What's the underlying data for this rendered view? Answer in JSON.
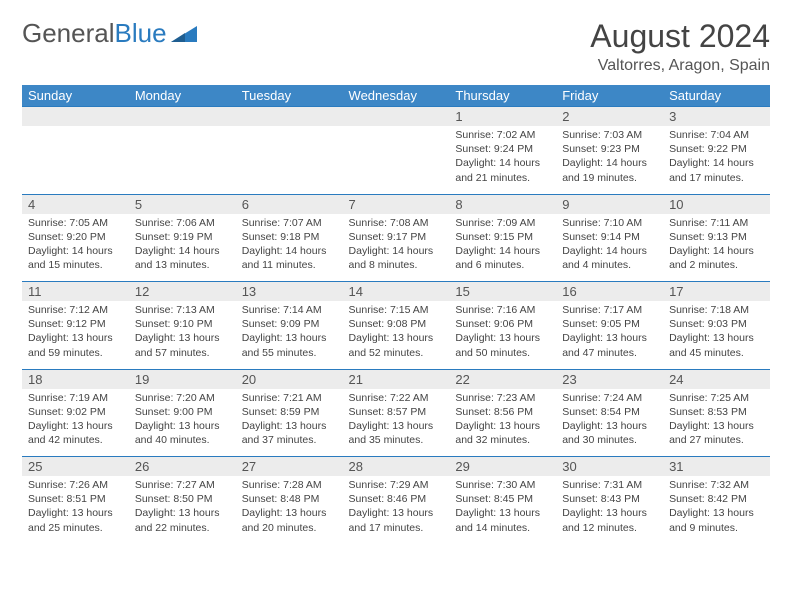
{
  "logo": {
    "text1": "General",
    "text2": "Blue"
  },
  "title": "August 2024",
  "subtitle": "Valtorres, Aragon, Spain",
  "colors": {
    "header_bg": "#3d87c6",
    "daynum_bg": "#ececec",
    "daynum_border": "#2a7bbf",
    "text": "#444444",
    "logo_gray": "#555555",
    "logo_blue": "#2a7bbf"
  },
  "weekdays": [
    "Sunday",
    "Monday",
    "Tuesday",
    "Wednesday",
    "Thursday",
    "Friday",
    "Saturday"
  ],
  "weeks": [
    [
      null,
      null,
      null,
      null,
      {
        "n": "1",
        "sunrise": "7:02 AM",
        "sunset": "9:24 PM",
        "daylight": "14 hours and 21 minutes."
      },
      {
        "n": "2",
        "sunrise": "7:03 AM",
        "sunset": "9:23 PM",
        "daylight": "14 hours and 19 minutes."
      },
      {
        "n": "3",
        "sunrise": "7:04 AM",
        "sunset": "9:22 PM",
        "daylight": "14 hours and 17 minutes."
      }
    ],
    [
      {
        "n": "4",
        "sunrise": "7:05 AM",
        "sunset": "9:20 PM",
        "daylight": "14 hours and 15 minutes."
      },
      {
        "n": "5",
        "sunrise": "7:06 AM",
        "sunset": "9:19 PM",
        "daylight": "14 hours and 13 minutes."
      },
      {
        "n": "6",
        "sunrise": "7:07 AM",
        "sunset": "9:18 PM",
        "daylight": "14 hours and 11 minutes."
      },
      {
        "n": "7",
        "sunrise": "7:08 AM",
        "sunset": "9:17 PM",
        "daylight": "14 hours and 8 minutes."
      },
      {
        "n": "8",
        "sunrise": "7:09 AM",
        "sunset": "9:15 PM",
        "daylight": "14 hours and 6 minutes."
      },
      {
        "n": "9",
        "sunrise": "7:10 AM",
        "sunset": "9:14 PM",
        "daylight": "14 hours and 4 minutes."
      },
      {
        "n": "10",
        "sunrise": "7:11 AM",
        "sunset": "9:13 PM",
        "daylight": "14 hours and 2 minutes."
      }
    ],
    [
      {
        "n": "11",
        "sunrise": "7:12 AM",
        "sunset": "9:12 PM",
        "daylight": "13 hours and 59 minutes."
      },
      {
        "n": "12",
        "sunrise": "7:13 AM",
        "sunset": "9:10 PM",
        "daylight": "13 hours and 57 minutes."
      },
      {
        "n": "13",
        "sunrise": "7:14 AM",
        "sunset": "9:09 PM",
        "daylight": "13 hours and 55 minutes."
      },
      {
        "n": "14",
        "sunrise": "7:15 AM",
        "sunset": "9:08 PM",
        "daylight": "13 hours and 52 minutes."
      },
      {
        "n": "15",
        "sunrise": "7:16 AM",
        "sunset": "9:06 PM",
        "daylight": "13 hours and 50 minutes."
      },
      {
        "n": "16",
        "sunrise": "7:17 AM",
        "sunset": "9:05 PM",
        "daylight": "13 hours and 47 minutes."
      },
      {
        "n": "17",
        "sunrise": "7:18 AM",
        "sunset": "9:03 PM",
        "daylight": "13 hours and 45 minutes."
      }
    ],
    [
      {
        "n": "18",
        "sunrise": "7:19 AM",
        "sunset": "9:02 PM",
        "daylight": "13 hours and 42 minutes."
      },
      {
        "n": "19",
        "sunrise": "7:20 AM",
        "sunset": "9:00 PM",
        "daylight": "13 hours and 40 minutes."
      },
      {
        "n": "20",
        "sunrise": "7:21 AM",
        "sunset": "8:59 PM",
        "daylight": "13 hours and 37 minutes."
      },
      {
        "n": "21",
        "sunrise": "7:22 AM",
        "sunset": "8:57 PM",
        "daylight": "13 hours and 35 minutes."
      },
      {
        "n": "22",
        "sunrise": "7:23 AM",
        "sunset": "8:56 PM",
        "daylight": "13 hours and 32 minutes."
      },
      {
        "n": "23",
        "sunrise": "7:24 AM",
        "sunset": "8:54 PM",
        "daylight": "13 hours and 30 minutes."
      },
      {
        "n": "24",
        "sunrise": "7:25 AM",
        "sunset": "8:53 PM",
        "daylight": "13 hours and 27 minutes."
      }
    ],
    [
      {
        "n": "25",
        "sunrise": "7:26 AM",
        "sunset": "8:51 PM",
        "daylight": "13 hours and 25 minutes."
      },
      {
        "n": "26",
        "sunrise": "7:27 AM",
        "sunset": "8:50 PM",
        "daylight": "13 hours and 22 minutes."
      },
      {
        "n": "27",
        "sunrise": "7:28 AM",
        "sunset": "8:48 PM",
        "daylight": "13 hours and 20 minutes."
      },
      {
        "n": "28",
        "sunrise": "7:29 AM",
        "sunset": "8:46 PM",
        "daylight": "13 hours and 17 minutes."
      },
      {
        "n": "29",
        "sunrise": "7:30 AM",
        "sunset": "8:45 PM",
        "daylight": "13 hours and 14 minutes."
      },
      {
        "n": "30",
        "sunrise": "7:31 AM",
        "sunset": "8:43 PM",
        "daylight": "13 hours and 12 minutes."
      },
      {
        "n": "31",
        "sunrise": "7:32 AM",
        "sunset": "8:42 PM",
        "daylight": "13 hours and 9 minutes."
      }
    ]
  ]
}
